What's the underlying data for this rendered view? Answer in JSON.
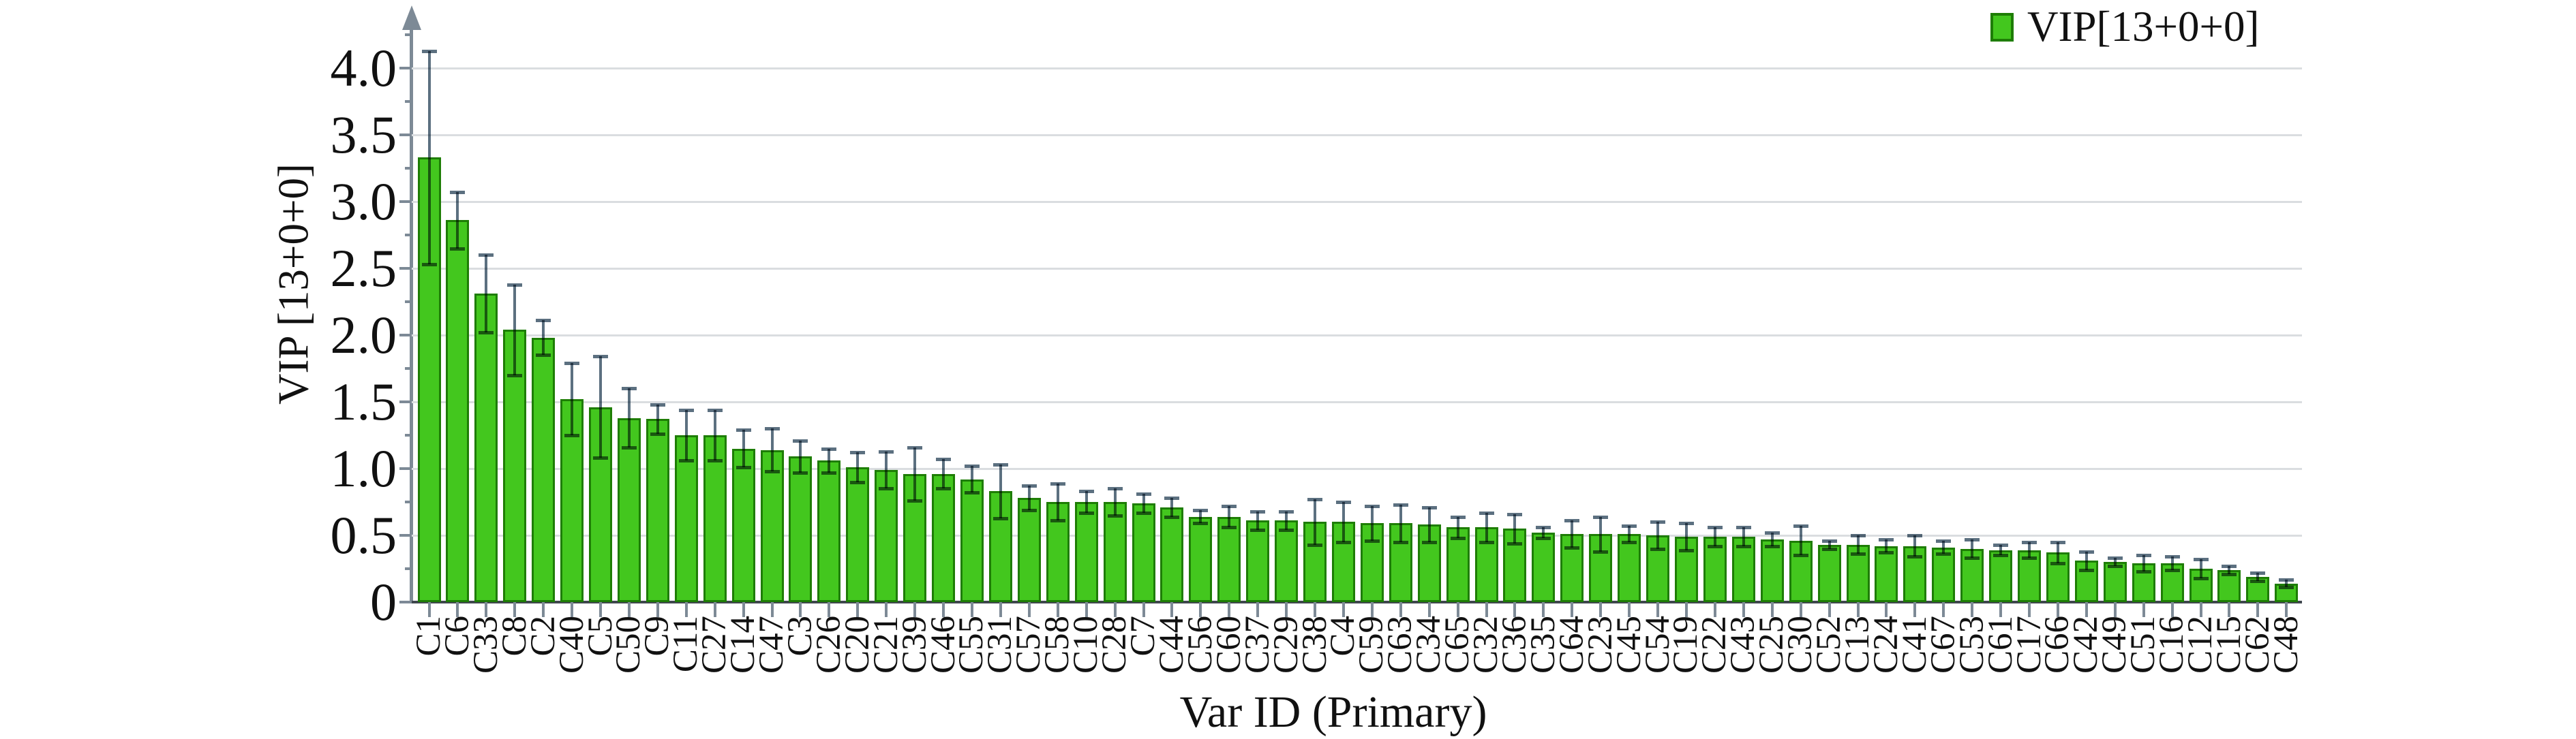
{
  "chart_data": {
    "type": "bar",
    "title": "",
    "xlabel": "Var ID (Primary)",
    "ylabel": "VIP [13+0+0]",
    "legend": [
      {
        "label": "VIP[13+0+0]",
        "color": "#43c71e"
      }
    ],
    "legend_position": "top-right",
    "grid": "horizontal-major",
    "ylim": [
      0,
      4.37
    ],
    "yticks": [
      0,
      0.5,
      1.0,
      1.5,
      2.0,
      2.5,
      3.0,
      3.5,
      4.0
    ],
    "ytick_labels": [
      "0",
      "0.5",
      "1.0",
      "1.5",
      "2.0",
      "2.5",
      "3.0",
      "3.5",
      "4.0"
    ],
    "minor_ytick_step": 0.25,
    "categories": [
      "C1",
      "C6",
      "C33",
      "C8",
      "C2",
      "C40",
      "C5",
      "C50",
      "C9",
      "C11",
      "C27",
      "C14",
      "C47",
      "C3",
      "C26",
      "C20",
      "C21",
      "C39",
      "C46",
      "C55",
      "C31",
      "C57",
      "C58",
      "C10",
      "C28",
      "C7",
      "C44",
      "C56",
      "C60",
      "C37",
      "C29",
      "C38",
      "C4",
      "C59",
      "C63",
      "C34",
      "C65",
      "C32",
      "C36",
      "C35",
      "C64",
      "C23",
      "C45",
      "C54",
      "C19",
      "C22",
      "C43",
      "C25",
      "C30",
      "C52",
      "C13",
      "C24",
      "C41",
      "C67",
      "C53",
      "C61",
      "C17",
      "C66",
      "C42",
      "C49",
      "C51",
      "C16",
      "C12",
      "C15",
      "C62",
      "C48"
    ],
    "series": [
      {
        "name": "VIP[13+0+0]",
        "values": [
          3.33,
          2.86,
          2.31,
          2.04,
          1.98,
          1.52,
          1.46,
          1.38,
          1.37,
          1.25,
          1.25,
          1.15,
          1.14,
          1.09,
          1.06,
          1.01,
          0.99,
          0.96,
          0.96,
          0.92,
          0.83,
          0.78,
          0.75,
          0.75,
          0.75,
          0.74,
          0.71,
          0.64,
          0.64,
          0.61,
          0.61,
          0.6,
          0.6,
          0.59,
          0.59,
          0.58,
          0.56,
          0.56,
          0.55,
          0.52,
          0.51,
          0.51,
          0.51,
          0.5,
          0.49,
          0.49,
          0.49,
          0.47,
          0.46,
          0.43,
          0.43,
          0.42,
          0.42,
          0.41,
          0.4,
          0.39,
          0.39,
          0.37,
          0.31,
          0.3,
          0.29,
          0.29,
          0.25,
          0.24,
          0.19,
          0.14
        ],
        "errors": [
          0.8,
          0.21,
          0.29,
          0.34,
          0.13,
          0.27,
          0.38,
          0.22,
          0.11,
          0.19,
          0.19,
          0.14,
          0.16,
          0.12,
          0.09,
          0.11,
          0.14,
          0.2,
          0.11,
          0.1,
          0.2,
          0.09,
          0.14,
          0.08,
          0.1,
          0.07,
          0.07,
          0.05,
          0.08,
          0.07,
          0.07,
          0.17,
          0.15,
          0.13,
          0.14,
          0.13,
          0.08,
          0.11,
          0.11,
          0.04,
          0.1,
          0.13,
          0.06,
          0.1,
          0.1,
          0.07,
          0.07,
          0.05,
          0.11,
          0.03,
          0.07,
          0.05,
          0.08,
          0.05,
          0.07,
          0.04,
          0.06,
          0.08,
          0.07,
          0.03,
          0.06,
          0.05,
          0.07,
          0.03,
          0.03,
          0.03
        ]
      }
    ],
    "colors": {
      "bar_fill": "#43c71e",
      "bar_border": "#1e7d05",
      "error_bar": "#5c7080",
      "axis": "#7d8a96",
      "baseline": "#40474e",
      "gridline": "#dadde0",
      "text": "#111111"
    }
  }
}
